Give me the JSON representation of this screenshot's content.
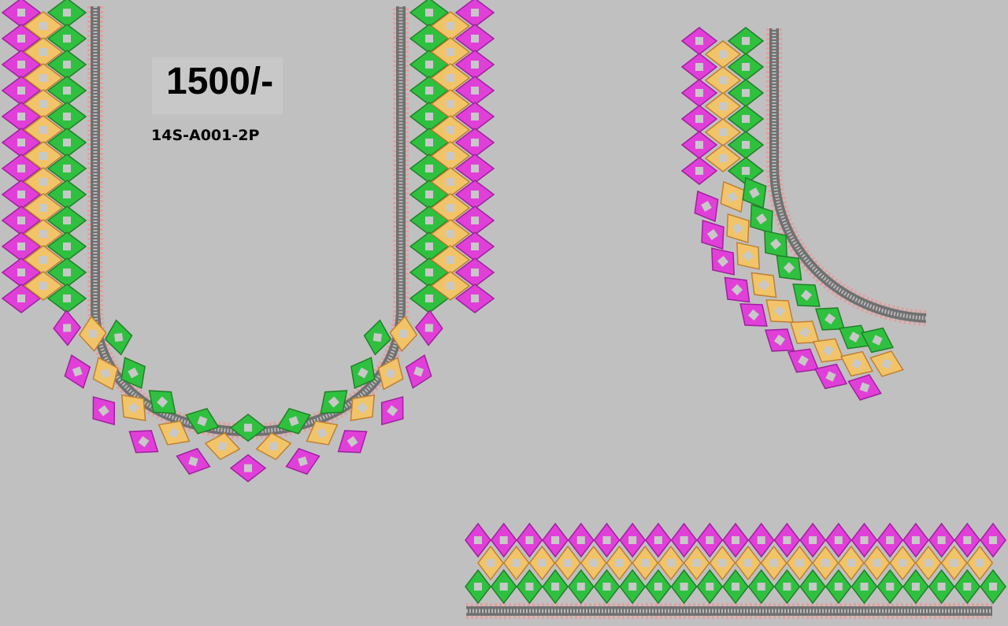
{
  "price_label": "1500/-",
  "design_code": "14S-A001-2P",
  "colors": {
    "background": "#c0c0c0",
    "pink": "#e040d8",
    "yellow": "#f2c46a",
    "green": "#30c040",
    "center": "#c8c8c8",
    "border_outline": "#e0a0a0",
    "border_track": "#707070"
  },
  "pieces": [
    "front-neck-piece",
    "sleeve-neck-piece",
    "sleeve-border-piece"
  ]
}
